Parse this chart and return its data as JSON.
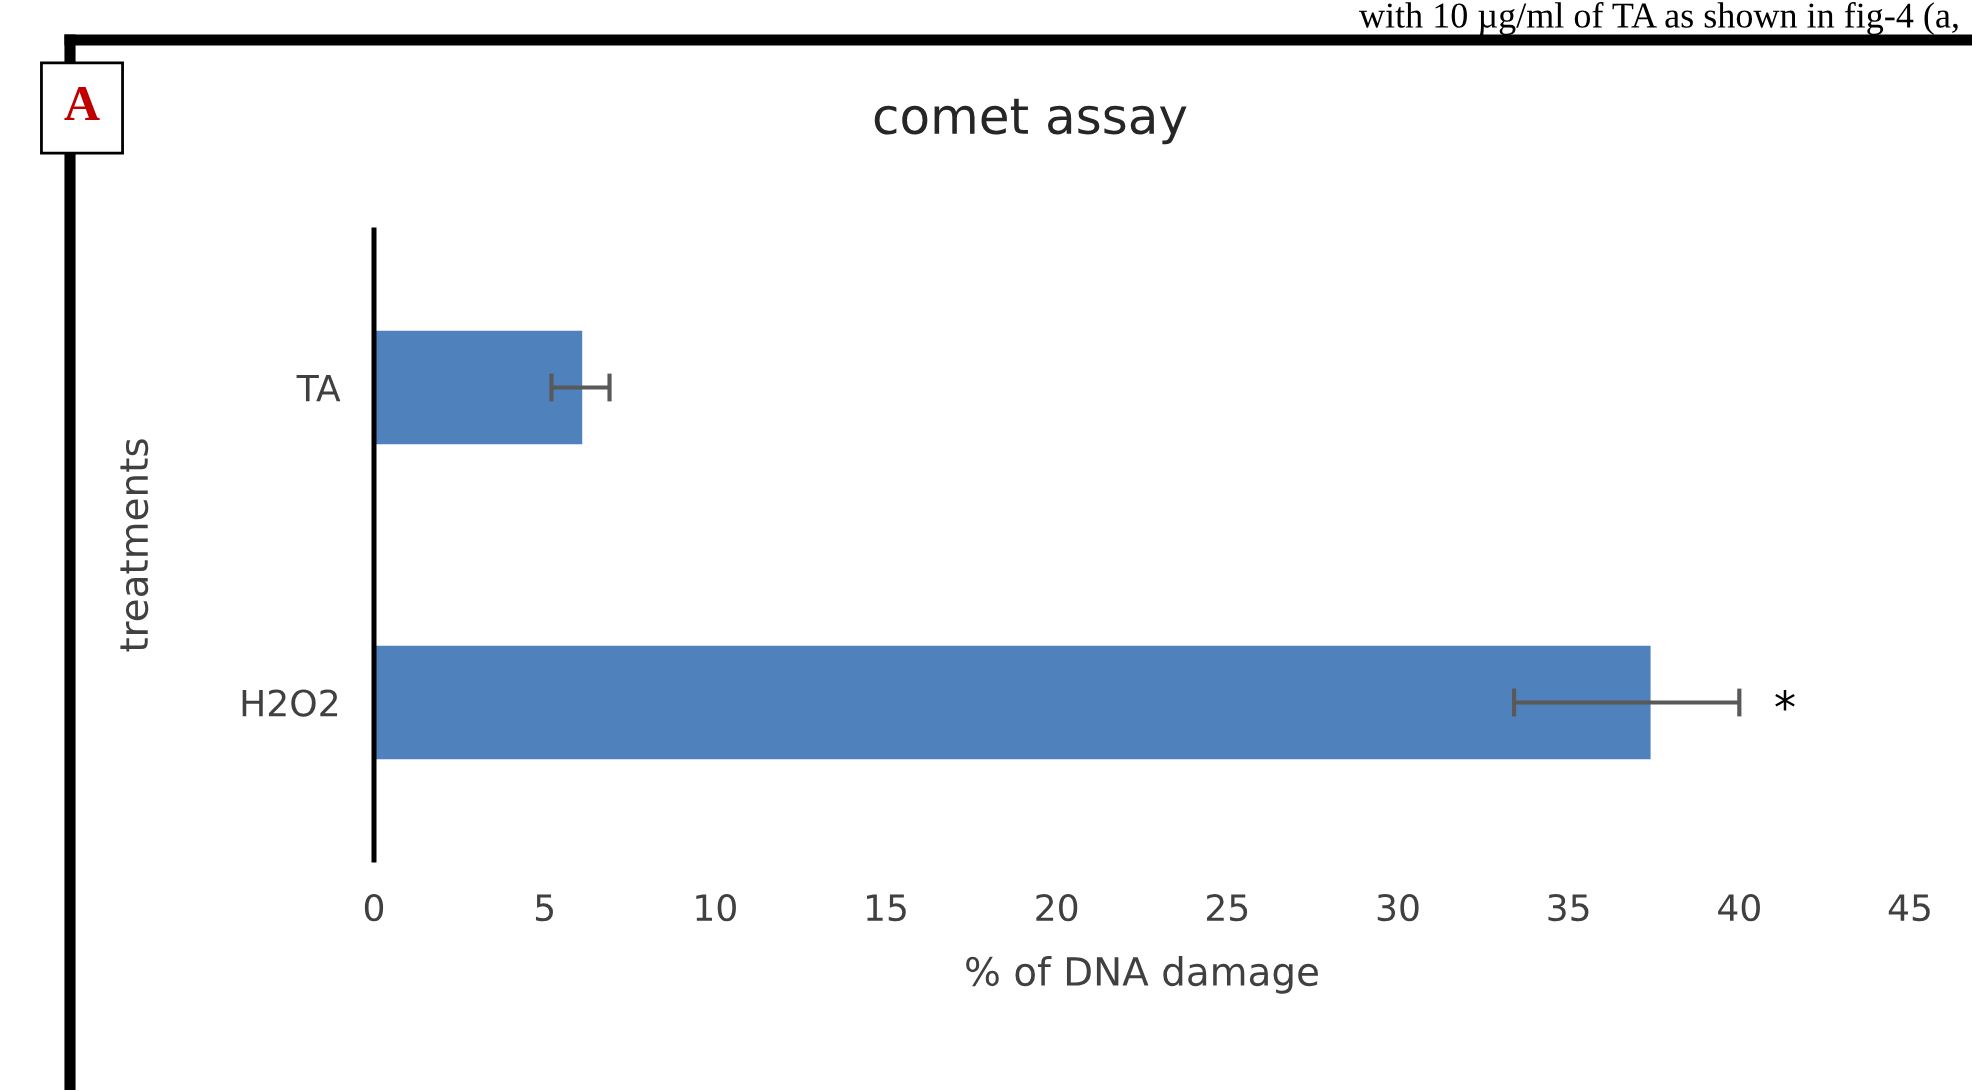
{
  "chart_data": {
    "type": "bar",
    "orientation": "horizontal",
    "title": "comet assay",
    "xlabel": "% of DNA damage",
    "ylabel": "treatments",
    "categories": [
      "TA",
      "H2O2"
    ],
    "values": [
      6.1,
      37.4
    ],
    "color": "#4f81bd",
    "errors": [
      [
        5.2,
        6.9
      ],
      [
        33.4,
        40.0
      ]
    ],
    "xlim": [
      0,
      45
    ],
    "xticks": [
      0,
      5,
      10,
      15,
      20,
      25,
      30,
      35,
      40,
      45
    ],
    "grid": false,
    "annotations": [
      "*",
      "A",
      "with 10 µg/ml of TA as shown in fig-4 (a,"
    ]
  }
}
